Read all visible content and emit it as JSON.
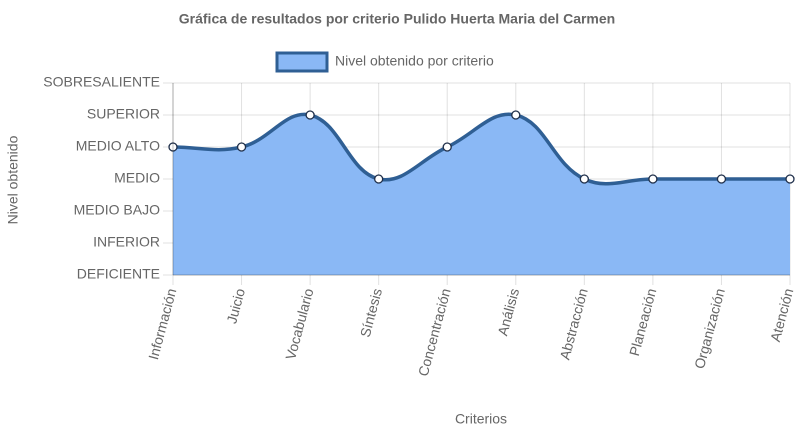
{
  "chart_data": {
    "type": "line",
    "title": "Gráfica de resultados por criterio Pulido Huerta Maria del Carmen",
    "x_label": "Criterios",
    "y_label": "Nivel obtenido",
    "categories": [
      "Información",
      "Juicio",
      "Vocabulario",
      "Síntesis",
      "Concentración",
      "Análisis",
      "Abstracción",
      "Planeación",
      "Organización",
      "Atención"
    ],
    "series": [
      {
        "name": "Nivel obtenido por criterio",
        "color": "#2f5f94",
        "fill": "#8ab8f5",
        "values": [
          4,
          4,
          5,
          3,
          4,
          5,
          3,
          3,
          3,
          3
        ]
      }
    ],
    "ylim": [
      0,
      6
    ],
    "yticks": [
      {
        "value": 0,
        "label": "DEFICIENTE"
      },
      {
        "value": 1,
        "label": "INFERIOR"
      },
      {
        "value": 2,
        "label": "MEDIO BAJO"
      },
      {
        "value": 3,
        "label": "MEDIO"
      },
      {
        "value": 4,
        "label": "MEDIO ALTO"
      },
      {
        "value": 5,
        "label": "SUPERIOR"
      },
      {
        "value": 6,
        "label": "SOBRESALIENTE"
      }
    ],
    "grid": true,
    "legend": "top"
  }
}
